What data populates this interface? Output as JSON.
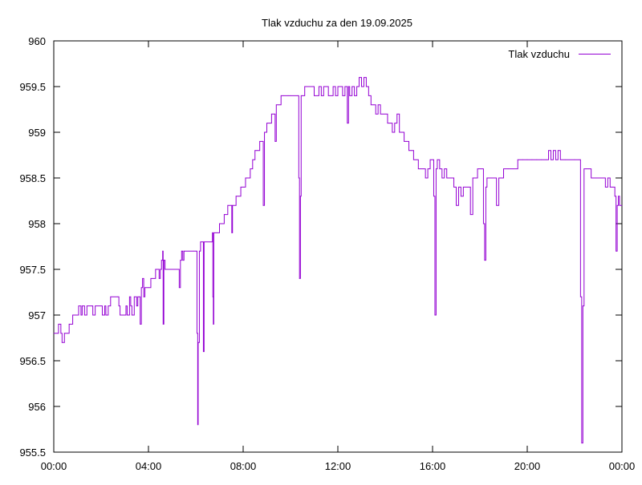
{
  "chart_data": {
    "type": "line",
    "title": "Tlak vzduchu za den 19.09.2025",
    "xlabel": "",
    "ylabel": "",
    "ylim": [
      955.5,
      960
    ],
    "xlim": [
      0,
      24
    ],
    "grid": false,
    "legend_placement": "top-right",
    "x_ticks": [
      {
        "value": 0,
        "label": "00:00"
      },
      {
        "value": 4,
        "label": "04:00"
      },
      {
        "value": 8,
        "label": "08:00"
      },
      {
        "value": 12,
        "label": "12:00"
      },
      {
        "value": 16,
        "label": "16:00"
      },
      {
        "value": 20,
        "label": "20:00"
      },
      {
        "value": 24,
        "label": "00:00"
      }
    ],
    "y_ticks": [
      {
        "value": 955.5,
        "label": "955.5"
      },
      {
        "value": 956,
        "label": "956"
      },
      {
        "value": 956.5,
        "label": "956.5"
      },
      {
        "value": 957,
        "label": "957"
      },
      {
        "value": 957.5,
        "label": "957.5"
      },
      {
        "value": 958,
        "label": "958"
      },
      {
        "value": 958.5,
        "label": "958.5"
      },
      {
        "value": 959,
        "label": "959"
      },
      {
        "value": 959.5,
        "label": "959.5"
      },
      {
        "value": 960,
        "label": "960"
      }
    ],
    "series": [
      {
        "name": "Tlak vzduchu",
        "color": "#9400d3",
        "points": [
          [
            0.0,
            956.8
          ],
          [
            0.15,
            956.8
          ],
          [
            0.2,
            956.9
          ],
          [
            0.3,
            956.8
          ],
          [
            0.35,
            956.7
          ],
          [
            0.45,
            956.8
          ],
          [
            0.6,
            956.8
          ],
          [
            0.65,
            956.9
          ],
          [
            0.8,
            957.0
          ],
          [
            1.0,
            957.0
          ],
          [
            1.05,
            957.1
          ],
          [
            1.15,
            957.0
          ],
          [
            1.2,
            957.1
          ],
          [
            1.3,
            957.0
          ],
          [
            1.4,
            957.1
          ],
          [
            1.6,
            957.1
          ],
          [
            1.65,
            957.0
          ],
          [
            1.75,
            957.1
          ],
          [
            2.0,
            957.1
          ],
          [
            2.05,
            957.0
          ],
          [
            2.15,
            957.1
          ],
          [
            2.2,
            957.0
          ],
          [
            2.3,
            957.1
          ],
          [
            2.4,
            957.2
          ],
          [
            2.7,
            957.2
          ],
          [
            2.75,
            957.1
          ],
          [
            2.8,
            957.0
          ],
          [
            3.0,
            957.0
          ],
          [
            3.05,
            957.1
          ],
          [
            3.1,
            957.0
          ],
          [
            3.2,
            957.2
          ],
          [
            3.25,
            957.1
          ],
          [
            3.3,
            957.0
          ],
          [
            3.4,
            957.2
          ],
          [
            3.5,
            957.1
          ],
          [
            3.55,
            957.2
          ],
          [
            3.6,
            957.2
          ],
          [
            3.65,
            956.9
          ],
          [
            3.7,
            957.3
          ],
          [
            3.75,
            957.4
          ],
          [
            3.8,
            957.2
          ],
          [
            3.85,
            957.3
          ],
          [
            4.0,
            957.3
          ],
          [
            4.1,
            957.4
          ],
          [
            4.2,
            957.4
          ],
          [
            4.3,
            957.5
          ],
          [
            4.4,
            957.5
          ],
          [
            4.45,
            957.4
          ],
          [
            4.5,
            957.5
          ],
          [
            4.55,
            957.6
          ],
          [
            4.6,
            957.7
          ],
          [
            4.62,
            956.9
          ],
          [
            4.65,
            957.6
          ],
          [
            4.7,
            957.5
          ],
          [
            4.8,
            957.5
          ],
          [
            5.0,
            957.5
          ],
          [
            5.2,
            957.5
          ],
          [
            5.3,
            957.3
          ],
          [
            5.35,
            957.6
          ],
          [
            5.4,
            957.7
          ],
          [
            5.45,
            957.6
          ],
          [
            5.5,
            957.7
          ],
          [
            5.7,
            957.7
          ],
          [
            5.9,
            957.7
          ],
          [
            6.0,
            957.7
          ],
          [
            6.05,
            956.8
          ],
          [
            6.08,
            955.8
          ],
          [
            6.1,
            956.7
          ],
          [
            6.15,
            957.7
          ],
          [
            6.2,
            957.8
          ],
          [
            6.3,
            957.8
          ],
          [
            6.32,
            956.6
          ],
          [
            6.35,
            957.8
          ],
          [
            6.6,
            957.8
          ],
          [
            6.7,
            957.9
          ],
          [
            6.72,
            957.2
          ],
          [
            6.74,
            956.9
          ],
          [
            6.76,
            957.9
          ],
          [
            6.9,
            957.9
          ],
          [
            7.0,
            958.0
          ],
          [
            7.2,
            958.1
          ],
          [
            7.35,
            958.2
          ],
          [
            7.5,
            958.2
          ],
          [
            7.52,
            957.9
          ],
          [
            7.55,
            958.2
          ],
          [
            7.7,
            958.3
          ],
          [
            7.8,
            958.3
          ],
          [
            7.9,
            958.4
          ],
          [
            8.0,
            958.4
          ],
          [
            8.1,
            958.5
          ],
          [
            8.2,
            958.5
          ],
          [
            8.3,
            958.6
          ],
          [
            8.4,
            958.7
          ],
          [
            8.5,
            958.8
          ],
          [
            8.6,
            958.8
          ],
          [
            8.7,
            958.9
          ],
          [
            8.8,
            958.9
          ],
          [
            8.85,
            958.2
          ],
          [
            8.9,
            959.0
          ],
          [
            9.0,
            959.1
          ],
          [
            9.1,
            959.1
          ],
          [
            9.2,
            959.2
          ],
          [
            9.3,
            959.2
          ],
          [
            9.35,
            958.9
          ],
          [
            9.4,
            959.3
          ],
          [
            9.5,
            959.3
          ],
          [
            9.6,
            959.4
          ],
          [
            9.7,
            959.4
          ],
          [
            9.9,
            959.4
          ],
          [
            10.0,
            959.4
          ],
          [
            10.3,
            959.4
          ],
          [
            10.35,
            958.5
          ],
          [
            10.38,
            957.4
          ],
          [
            10.42,
            958.3
          ],
          [
            10.45,
            959.4
          ],
          [
            10.5,
            959.4
          ],
          [
            10.6,
            959.5
          ],
          [
            10.8,
            959.5
          ],
          [
            11.0,
            959.4
          ],
          [
            11.2,
            959.5
          ],
          [
            11.3,
            959.4
          ],
          [
            11.4,
            959.5
          ],
          [
            11.5,
            959.5
          ],
          [
            11.6,
            959.4
          ],
          [
            11.8,
            959.5
          ],
          [
            11.9,
            959.4
          ],
          [
            12.0,
            959.5
          ],
          [
            12.2,
            959.4
          ],
          [
            12.3,
            959.5
          ],
          [
            12.4,
            959.1
          ],
          [
            12.45,
            959.5
          ],
          [
            12.5,
            959.4
          ],
          [
            12.6,
            959.5
          ],
          [
            12.7,
            959.4
          ],
          [
            12.8,
            959.5
          ],
          [
            12.9,
            959.6
          ],
          [
            13.0,
            959.5
          ],
          [
            13.1,
            959.6
          ],
          [
            13.2,
            959.5
          ],
          [
            13.3,
            959.4
          ],
          [
            13.4,
            959.3
          ],
          [
            13.5,
            959.3
          ],
          [
            13.6,
            959.2
          ],
          [
            13.7,
            959.3
          ],
          [
            13.8,
            959.2
          ],
          [
            13.9,
            959.2
          ],
          [
            14.0,
            959.2
          ],
          [
            14.1,
            959.1
          ],
          [
            14.2,
            959.1
          ],
          [
            14.3,
            959.0
          ],
          [
            14.4,
            959.1
          ],
          [
            14.5,
            959.2
          ],
          [
            14.6,
            959.0
          ],
          [
            14.7,
            959.0
          ],
          [
            14.8,
            958.9
          ],
          [
            14.9,
            958.9
          ],
          [
            15.0,
            958.8
          ],
          [
            15.1,
            958.8
          ],
          [
            15.2,
            958.7
          ],
          [
            15.3,
            958.7
          ],
          [
            15.4,
            958.6
          ],
          [
            15.5,
            958.6
          ],
          [
            15.6,
            958.6
          ],
          [
            15.7,
            958.5
          ],
          [
            15.8,
            958.6
          ],
          [
            15.9,
            958.7
          ],
          [
            16.0,
            958.7
          ],
          [
            16.05,
            958.3
          ],
          [
            16.1,
            957.0
          ],
          [
            16.15,
            958.6
          ],
          [
            16.2,
            958.7
          ],
          [
            16.3,
            958.6
          ],
          [
            16.4,
            958.5
          ],
          [
            16.5,
            958.6
          ],
          [
            16.6,
            958.5
          ],
          [
            16.8,
            958.5
          ],
          [
            16.9,
            958.4
          ],
          [
            17.0,
            958.2
          ],
          [
            17.1,
            958.4
          ],
          [
            17.2,
            958.3
          ],
          [
            17.3,
            958.4
          ],
          [
            17.5,
            958.4
          ],
          [
            17.6,
            958.1
          ],
          [
            17.7,
            958.5
          ],
          [
            17.8,
            958.5
          ],
          [
            17.9,
            958.6
          ],
          [
            18.1,
            958.6
          ],
          [
            18.15,
            958.0
          ],
          [
            18.2,
            957.6
          ],
          [
            18.25,
            958.4
          ],
          [
            18.3,
            958.5
          ],
          [
            18.5,
            958.5
          ],
          [
            18.6,
            958.5
          ],
          [
            18.7,
            958.2
          ],
          [
            18.8,
            958.5
          ],
          [
            19.0,
            958.6
          ],
          [
            19.2,
            958.6
          ],
          [
            19.4,
            958.6
          ],
          [
            19.6,
            958.7
          ],
          [
            19.8,
            958.7
          ],
          [
            20.0,
            958.7
          ],
          [
            20.2,
            958.7
          ],
          [
            20.4,
            958.7
          ],
          [
            20.6,
            958.7
          ],
          [
            20.8,
            958.7
          ],
          [
            20.9,
            958.8
          ],
          [
            21.0,
            958.7
          ],
          [
            21.1,
            958.8
          ],
          [
            21.2,
            958.7
          ],
          [
            21.3,
            958.8
          ],
          [
            21.4,
            958.7
          ],
          [
            21.6,
            958.7
          ],
          [
            22.0,
            958.7
          ],
          [
            22.2,
            958.7
          ],
          [
            22.25,
            957.2
          ],
          [
            22.3,
            955.6
          ],
          [
            22.35,
            957.1
          ],
          [
            22.4,
            958.6
          ],
          [
            22.5,
            958.6
          ],
          [
            22.6,
            958.6
          ],
          [
            22.7,
            958.5
          ],
          [
            22.9,
            958.5
          ],
          [
            23.0,
            958.5
          ],
          [
            23.2,
            958.5
          ],
          [
            23.3,
            958.4
          ],
          [
            23.4,
            958.5
          ],
          [
            23.5,
            958.4
          ],
          [
            23.6,
            958.4
          ],
          [
            23.7,
            958.3
          ],
          [
            23.75,
            957.7
          ],
          [
            23.8,
            958.2
          ],
          [
            23.85,
            958.3
          ],
          [
            23.9,
            958.2
          ],
          [
            24.0,
            958.2
          ]
        ]
      }
    ]
  }
}
